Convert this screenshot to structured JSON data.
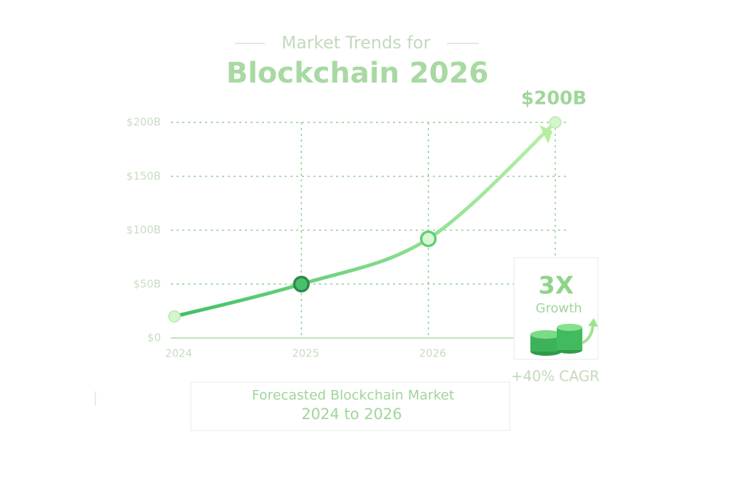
{
  "chart_data": {
    "type": "line",
    "title": "Market Trends for",
    "subtitle": "Blockchain 2026",
    "categories": [
      "2024",
      "2025",
      "2026",
      null
    ],
    "series": [
      {
        "name": "Blockchain Market",
        "color": "#4fc874",
        "values": [
          20,
          50,
          92,
          200
        ],
        "value_labels": [
          null,
          null,
          null,
          "$200B"
        ]
      }
    ],
    "ylim": [
      0,
      200
    ],
    "yticks": [
      {
        "value": 0,
        "label": "$0"
      },
      {
        "value": 50,
        "label": "$50B"
      },
      {
        "value": 100,
        "label": "$100B"
      },
      {
        "value": 150,
        "label": "$150B"
      },
      {
        "value": 200,
        "label": "$200B"
      }
    ],
    "grid": true,
    "annotations": {
      "multiplier": "3X",
      "growth": "Growth",
      "cagr": "+40% CAGR"
    },
    "caption": [
      "Forecasted Blockchain Market",
      "2024 to 2026"
    ]
  }
}
